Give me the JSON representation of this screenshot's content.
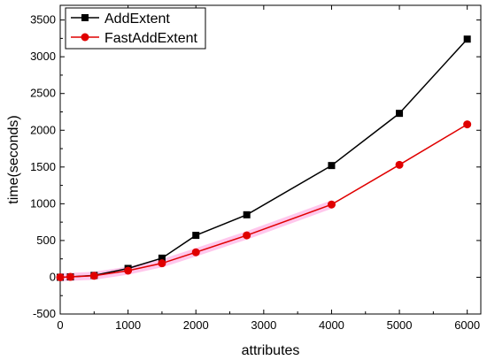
{
  "chart_data": {
    "type": "line",
    "title": "",
    "xlabel": "attributes",
    "ylabel": "time(seconds)",
    "xlim": [
      0,
      6200
    ],
    "ylim": [
      -500,
      3700
    ],
    "xticks": [
      0,
      1000,
      2000,
      3000,
      4000,
      5000,
      6000
    ],
    "yticks": [
      -500,
      0,
      500,
      1000,
      1500,
      2000,
      2500,
      3000,
      3500
    ],
    "grid": false,
    "legend_position": "top-left",
    "series": [
      {
        "name": "AddExtent",
        "color": "#000000",
        "marker": "square",
        "x": [
          0,
          150,
          500,
          1000,
          1500,
          2000,
          2750,
          4000,
          5000,
          6000
        ],
        "y": [
          0,
          5,
          25,
          120,
          260,
          570,
          850,
          1520,
          2230,
          3240
        ]
      },
      {
        "name": "FastAddExtent",
        "color": "#e00000",
        "marker": "circle",
        "x": [
          0,
          150,
          500,
          1000,
          1500,
          2000,
          2750,
          4000,
          5000,
          6000
        ],
        "y": [
          0,
          5,
          20,
          90,
          190,
          340,
          570,
          990,
          1530,
          2080
        ]
      }
    ],
    "highlight_color": "#ff99dd"
  }
}
